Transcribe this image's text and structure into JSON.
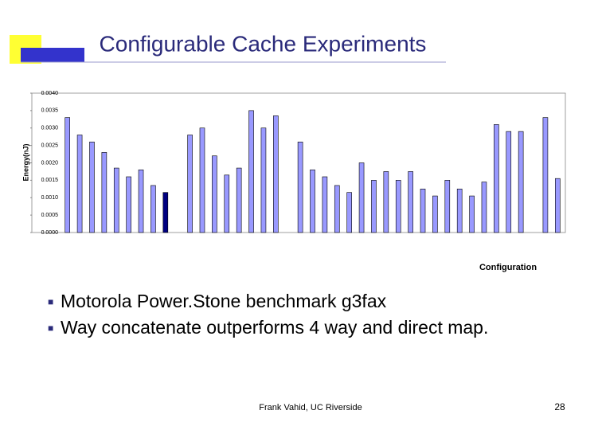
{
  "slide": {
    "title": "Configurable Cache Experiments",
    "bullets": [
      "Motorola Power.Stone benchmark g3fax",
      "Way concatenate outperforms 4 way and direct map."
    ],
    "footer": "Frank Vahid, UC Riverside",
    "page_number": "28"
  },
  "chart_data": {
    "type": "bar",
    "ylabel": "Energy(nJ)",
    "xlabel": "Configuration",
    "categories": [
      null,
      null,
      null,
      null,
      null,
      null,
      null,
      null,
      null,
      null,
      null,
      null,
      null,
      null,
      null,
      null,
      null,
      null,
      null,
      null,
      null,
      null,
      null,
      null,
      null,
      null,
      null,
      null,
      null,
      null,
      null,
      null,
      null,
      null,
      null,
      null,
      null,
      null,
      null,
      null,
      null
    ],
    "values": [
      0.0033,
      0.0028,
      0.0026,
      0.0023,
      0.00185,
      0.0016,
      0.0018,
      0.00135,
      0.00115,
      null,
      0.0028,
      0.003,
      0.0022,
      0.00165,
      0.00185,
      0.0035,
      0.003,
      0.00335,
      null,
      0.0026,
      0.0018,
      0.0016,
      0.00135,
      0.00115,
      0.002,
      0.0015,
      0.00175,
      0.0015,
      0.00175,
      0.00125,
      0.00105,
      0.0015,
      0.00125,
      0.00105,
      0.00145,
      0.0031,
      0.0029,
      0.0029,
      null,
      0.0033,
      0.00155
    ],
    "colors": [
      "#9999ff",
      "#9999ff",
      "#9999ff",
      "#9999ff",
      "#9999ff",
      "#9999ff",
      "#9999ff",
      "#9999ff",
      "#000080",
      null,
      "#9999ff",
      "#9999ff",
      "#9999ff",
      "#9999ff",
      "#9999ff",
      "#9999ff",
      "#9999ff",
      "#9999ff",
      null,
      "#9999ff",
      "#9999ff",
      "#9999ff",
      "#9999ff",
      "#9999ff",
      "#9999ff",
      "#9999ff",
      "#9999ff",
      "#9999ff",
      "#9999ff",
      "#9999ff",
      "#9999ff",
      "#9999ff",
      "#9999ff",
      "#9999ff",
      "#9999ff",
      "#9999ff",
      "#9999ff",
      "#9999ff",
      null,
      "#9999ff",
      "#9999ff"
    ],
    "ylim": [
      0,
      0.004
    ],
    "yticks": [
      {
        "value": 0,
        "label": "0.0000"
      },
      {
        "value": 0.0005,
        "label": "0.0005"
      },
      {
        "value": 0.001,
        "label": "0.0010"
      },
      {
        "value": 0.0015,
        "label": "0.0015"
      },
      {
        "value": 0.002,
        "label": "0.0020"
      },
      {
        "value": 0.0025,
        "label": "0.0025"
      },
      {
        "value": 0.003,
        "label": "0.0030"
      },
      {
        "value": 0.0035,
        "label": "0.0035"
      },
      {
        "value": 0.004,
        "label": "0.0040"
      }
    ],
    "grid": false
  }
}
